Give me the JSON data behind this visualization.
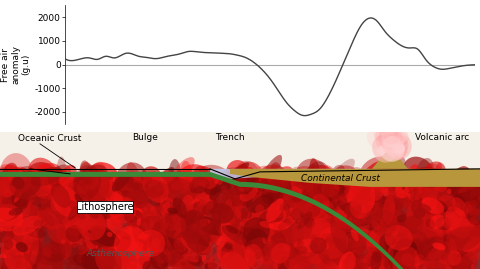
{
  "graph_yticks": [
    2000,
    1000,
    0,
    -1000,
    -2000
  ],
  "graph_ylabel": "Free air\nanomaly\n(g.u)",
  "ylabel_fontsize": 6.5,
  "ytick_fontsize": 6.5,
  "graph_xlim": [
    0,
    100
  ],
  "graph_ylim": [
    -2500,
    2500
  ],
  "zero_line_color": "#aaaaaa",
  "curve_color": "#444444",
  "curve_lw": 1.0,
  "label_fontsize": 6.5,
  "bg_color": "#ffffff",
  "green_crust_color": "#3a8a3a",
  "litho_base_color": "#8c2a2a",
  "continental_crust_color": "#b8963c",
  "water_color": "#c0ceee",
  "asthenosphere_color": "#f5f0e8",
  "curve_x": [
    0,
    3,
    6,
    8,
    10,
    12,
    15,
    18,
    20,
    22,
    25,
    28,
    30,
    33,
    36,
    38,
    40,
    42,
    44,
    46,
    48,
    50,
    52,
    54,
    56,
    58,
    60,
    62,
    64,
    66,
    68,
    70,
    72,
    74,
    76,
    78,
    80,
    82,
    84,
    86,
    88,
    90,
    92,
    94,
    96,
    98,
    100
  ],
  "curve_y": [
    250,
    200,
    280,
    220,
    350,
    280,
    480,
    350,
    300,
    250,
    350,
    450,
    550,
    520,
    500,
    480,
    460,
    400,
    300,
    100,
    -200,
    -600,
    -1100,
    -1600,
    -1950,
    -2150,
    -2100,
    -1900,
    -1400,
    -700,
    100,
    900,
    1600,
    1950,
    1850,
    1400,
    1050,
    800,
    700,
    650,
    200,
    -100,
    -200,
    -150,
    -80,
    -30,
    -10
  ]
}
